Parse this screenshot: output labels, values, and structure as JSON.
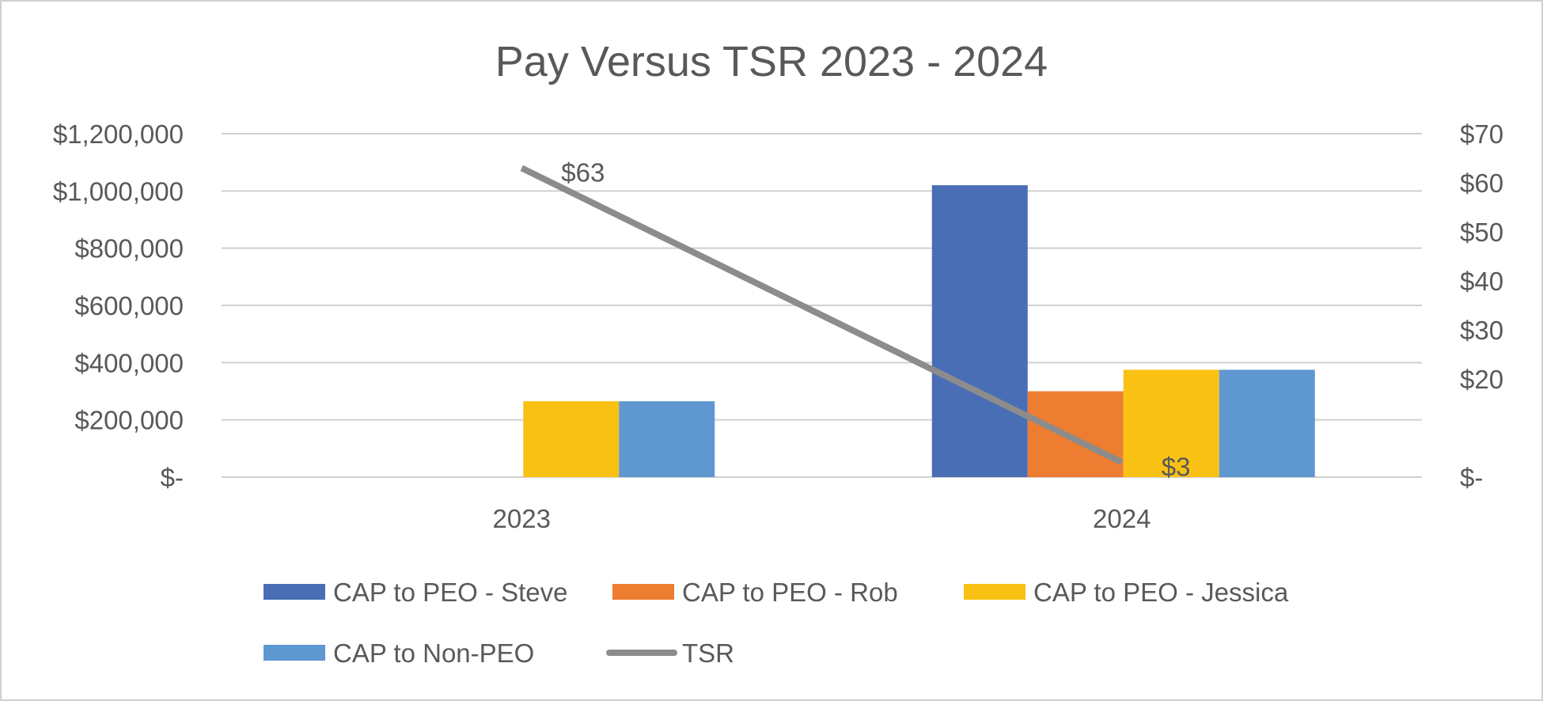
{
  "chart_data": {
    "type": "bar",
    "title": "Pay Versus TSR 2023 - 2024",
    "categories": [
      "2023",
      "2024"
    ],
    "y_left": {
      "range": [
        0,
        1200000
      ],
      "ticks": [
        0,
        200000,
        400000,
        600000,
        800000,
        1000000,
        1200000
      ],
      "tick_labels": [
        "$-",
        "$200,000",
        "$400,000",
        "$600,000",
        "$800,000",
        "$1,000,000",
        "$1,200,000"
      ]
    },
    "y_right": {
      "range": [
        0,
        70
      ],
      "ticks": [
        0,
        20,
        30,
        40,
        50,
        60,
        70
      ],
      "tick_labels": [
        "$-",
        "$20",
        "$30",
        "$40",
        "$50",
        "$60",
        "$70"
      ]
    },
    "series": [
      {
        "name": "CAP to PEO - Steve",
        "type": "bar",
        "axis": "left",
        "color": "#4A6EB5",
        "values": [
          0,
          1020000
        ]
      },
      {
        "name": "CAP to PEO - Rob",
        "type": "bar",
        "axis": "left",
        "color": "#ED7D31",
        "values": [
          0,
          300000
        ]
      },
      {
        "name": "CAP to PEO - Jessica",
        "type": "bar",
        "axis": "left",
        "color": "#F9C114",
        "values": [
          265000,
          375000
        ]
      },
      {
        "name": "CAP to Non-PEO",
        "type": "bar",
        "axis": "left",
        "color": "#5F97D1",
        "values": [
          265000,
          375000
        ]
      },
      {
        "name": "TSR",
        "type": "line",
        "axis": "right",
        "color": "#8C8C8C",
        "values": [
          63,
          3
        ],
        "data_labels": [
          "$63",
          "$3"
        ]
      }
    ],
    "grid": true,
    "legend_position": "bottom"
  }
}
